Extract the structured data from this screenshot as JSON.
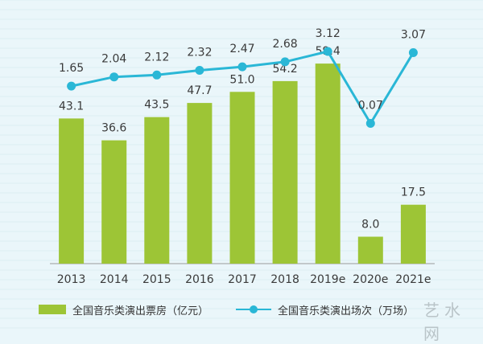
{
  "chart_data": {
    "type": "bar+line",
    "categories": [
      "2013",
      "2014",
      "2015",
      "2016",
      "2017",
      "2018",
      "2019e",
      "2020e",
      "2021e"
    ],
    "series": [
      {
        "name": "全国音乐类演出票房（亿元）",
        "type": "bar",
        "values": [
          43.1,
          36.6,
          43.5,
          47.7,
          51.0,
          54.2,
          59.4,
          8.0,
          17.5
        ],
        "labels": [
          "43.1",
          "36.6",
          "43.5",
          "47.7",
          "51.0",
          "54.2",
          "59.4",
          "8.0",
          "17.5"
        ],
        "color": "#9dc536"
      },
      {
        "name": "全国音乐类演出场次（万场）",
        "type": "line",
        "values": [
          1.65,
          2.04,
          2.12,
          2.32,
          2.47,
          2.68,
          3.12,
          0.07,
          3.07
        ],
        "labels": [
          "1.65",
          "2.04",
          "2.12",
          "2.32",
          "2.47",
          "2.68",
          "3.12",
          "0.07",
          "3.07"
        ],
        "color": "#2ab7d6"
      }
    ],
    "bar_axis_range": [
      0,
      100
    ],
    "line_axis_range": [
      -2.8,
      4.0
    ],
    "legend": [
      {
        "label": "全国音乐类演出票房（亿元）",
        "kind": "bar"
      },
      {
        "label": "全国音乐类演出场次（万场）",
        "kind": "line"
      }
    ],
    "legend_position": "bottom"
  },
  "watermark": "艺水网"
}
